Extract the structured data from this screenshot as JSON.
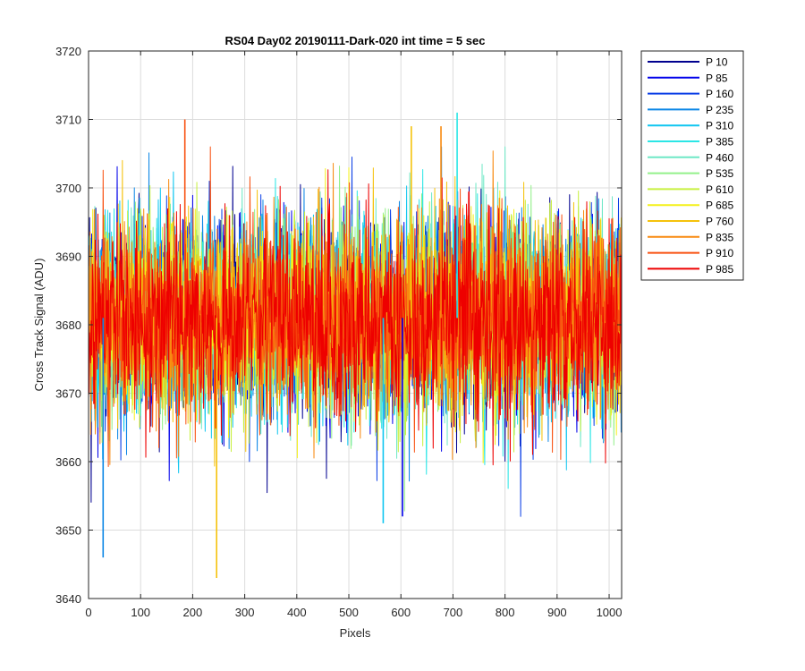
{
  "chart_data": {
    "type": "line",
    "title": "RS04 Day02 20190111-Dark-020 int time = 5 sec",
    "xlabel": "Pixels",
    "ylabel": "Cross Track Signal (ADU)",
    "xlim": [
      0,
      1024
    ],
    "ylim": [
      3640,
      3720
    ],
    "xticks": [
      0,
      100,
      200,
      300,
      400,
      500,
      600,
      700,
      800,
      900,
      1000
    ],
    "yticks": [
      3640,
      3650,
      3660,
      3670,
      3680,
      3690,
      3700,
      3710,
      3720
    ],
    "grid": true,
    "legend_position": "outside-top-right",
    "noise_mean": 3681,
    "noise_sigma": 7,
    "series": [
      {
        "name": "P 10",
        "color": "#00008f"
      },
      {
        "name": "P 85",
        "color": "#0000ea"
      },
      {
        "name": "P 160",
        "color": "#0a3ee6"
      },
      {
        "name": "P 235",
        "color": "#0b86e6"
      },
      {
        "name": "P 310",
        "color": "#10c6f0"
      },
      {
        "name": "P 385",
        "color": "#2be6e6"
      },
      {
        "name": "P 460",
        "color": "#6fe8c6"
      },
      {
        "name": "P 535",
        "color": "#93f08a"
      },
      {
        "name": "P 610",
        "color": "#c8f040"
      },
      {
        "name": "P 685",
        "color": "#f4f019"
      },
      {
        "name": "P 760",
        "color": "#f5c20c"
      },
      {
        "name": "P 835",
        "color": "#f88a10"
      },
      {
        "name": "P 910",
        "color": "#f85010"
      },
      {
        "name": "P 985",
        "color": "#ee0000"
      }
    ],
    "annotations": [
      {
        "series": "P 235",
        "x": 28,
        "y": 3646
      },
      {
        "series": "P 760",
        "x": 246,
        "y": 3643
      },
      {
        "series": "P 910",
        "x": 185,
        "y": 3710
      },
      {
        "series": "P 385",
        "x": 708,
        "y": 3711
      },
      {
        "series": "P 835",
        "x": 677,
        "y": 3709
      },
      {
        "series": "P 760",
        "x": 620,
        "y": 3709
      },
      {
        "series": "P 310",
        "x": 566,
        "y": 3651
      },
      {
        "series": "P 85",
        "x": 603,
        "y": 3652
      }
    ]
  }
}
